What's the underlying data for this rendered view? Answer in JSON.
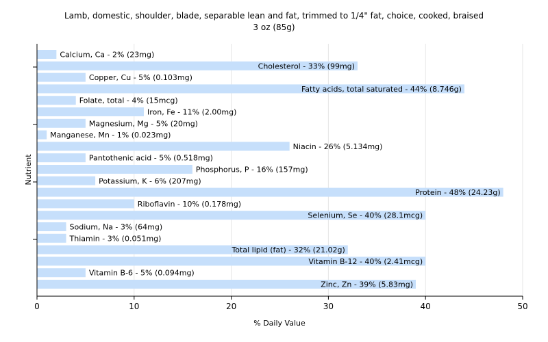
{
  "chart_data": {
    "type": "bar",
    "orientation": "horizontal",
    "title": "Lamb, domestic, shoulder, blade, separable lean and fat, trimmed to 1/4\" fat, choice, cooked, braised",
    "subtitle": "3 oz (85g)",
    "xlabel": "% Daily Value",
    "ylabel": "Nutrient",
    "xlim": [
      0,
      50
    ],
    "x_ticks": [
      0,
      10,
      20,
      30,
      40,
      50
    ],
    "grid": true,
    "bar_color": "#c6dffb",
    "categories": [
      "Calcium, Ca - 2% (23mg)",
      "Cholesterol - 33% (99mg)",
      "Copper, Cu - 5% (0.103mg)",
      "Fatty acids, total saturated - 44% (8.746g)",
      "Folate, total - 4% (15mcg)",
      "Iron, Fe - 11% (2.00mg)",
      "Magnesium, Mg - 5% (20mg)",
      "Manganese, Mn - 1% (0.023mg)",
      "Niacin - 26% (5.134mg)",
      "Pantothenic acid - 5% (0.518mg)",
      "Phosphorus, P - 16% (157mg)",
      "Potassium, K - 6% (207mg)",
      "Protein - 48% (24.23g)",
      "Riboflavin - 10% (0.178mg)",
      "Selenium, Se - 40% (28.1mcg)",
      "Sodium, Na - 3% (64mg)",
      "Thiamin - 3% (0.051mg)",
      "Total lipid (fat) - 32% (21.02g)",
      "Vitamin B-12 - 40% (2.41mcg)",
      "Vitamin B-6 - 5% (0.094mg)",
      "Zinc, Zn - 39% (5.83mg)"
    ],
    "values": [
      2,
      33,
      5,
      44,
      4,
      11,
      5,
      1,
      26,
      5,
      16,
      6,
      48,
      10,
      40,
      3,
      3,
      32,
      40,
      5,
      39
    ]
  }
}
